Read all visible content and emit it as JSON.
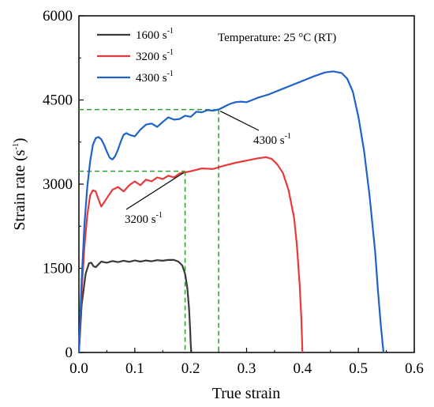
{
  "chart_data": {
    "type": "line",
    "xlabel": "True strain",
    "ylabel_main": "Strain rate (s",
    "ylabel_sup": "-1",
    "ylabel_tail": ")",
    "xlim": [
      0,
      0.6
    ],
    "ylim": [
      0,
      6000
    ],
    "xticks": [
      0.0,
      0.1,
      0.2,
      0.3,
      0.4,
      0.5,
      0.6
    ],
    "xtick_labels": [
      "0.0",
      "0.1",
      "0.2",
      "0.3",
      "0.4",
      "0.5",
      "0.6"
    ],
    "yticks": [
      0,
      1500,
      3000,
      4500,
      6000
    ],
    "ytick_labels": [
      "0",
      "1500",
      "3000",
      "4500",
      "6000"
    ],
    "grid": false,
    "legend_position": "top-left",
    "annotation": "Temperature:  25 °C (RT)",
    "series": [
      {
        "name": "1600 s",
        "name_sup": "-1",
        "color": "#3a3a3a",
        "x": [
          0,
          0.005,
          0.012,
          0.018,
          0.022,
          0.026,
          0.03,
          0.034,
          0.04,
          0.05,
          0.06,
          0.07,
          0.08,
          0.09,
          0.1,
          0.11,
          0.12,
          0.13,
          0.14,
          0.15,
          0.16,
          0.17,
          0.178,
          0.185,
          0.19,
          0.194,
          0.197,
          0.199,
          0.2,
          0.201
        ],
        "y": [
          0,
          850,
          1400,
          1590,
          1600,
          1540,
          1520,
          1560,
          1620,
          1600,
          1630,
          1610,
          1635,
          1615,
          1640,
          1620,
          1640,
          1625,
          1645,
          1635,
          1650,
          1650,
          1620,
          1550,
          1400,
          1150,
          800,
          400,
          150,
          0
        ]
      },
      {
        "name": "3200 s",
        "name_sup": "-1",
        "color": "#e8393a",
        "x": [
          0,
          0.005,
          0.01,
          0.015,
          0.02,
          0.025,
          0.03,
          0.035,
          0.04,
          0.05,
          0.06,
          0.07,
          0.08,
          0.09,
          0.1,
          0.11,
          0.12,
          0.13,
          0.14,
          0.15,
          0.16,
          0.17,
          0.18,
          0.19,
          0.2,
          0.22,
          0.24,
          0.26,
          0.28,
          0.3,
          0.32,
          0.335,
          0.345,
          0.355,
          0.365,
          0.375,
          0.385,
          0.39,
          0.395,
          0.398,
          0.4
        ],
        "y": [
          0,
          1100,
          1900,
          2450,
          2800,
          2890,
          2870,
          2730,
          2600,
          2750,
          2900,
          2950,
          2870,
          2980,
          3050,
          2980,
          3080,
          3050,
          3120,
          3090,
          3150,
          3120,
          3190,
          3210,
          3230,
          3280,
          3270,
          3330,
          3380,
          3420,
          3460,
          3480,
          3450,
          3350,
          3200,
          2900,
          2400,
          1900,
          1200,
          600,
          0
        ]
      },
      {
        "name": "4300 s",
        "name_sup": "-1",
        "color": "#1f62c8",
        "x": [
          0,
          0.005,
          0.01,
          0.015,
          0.02,
          0.025,
          0.03,
          0.035,
          0.04,
          0.045,
          0.05,
          0.055,
          0.06,
          0.065,
          0.07,
          0.075,
          0.08,
          0.085,
          0.09,
          0.1,
          0.11,
          0.12,
          0.13,
          0.14,
          0.15,
          0.16,
          0.17,
          0.18,
          0.19,
          0.2,
          0.21,
          0.22,
          0.23,
          0.24,
          0.25,
          0.26,
          0.27,
          0.28,
          0.29,
          0.3,
          0.31,
          0.32,
          0.33,
          0.34,
          0.36,
          0.38,
          0.4,
          0.42,
          0.44,
          0.455,
          0.47,
          0.48,
          0.49,
          0.5,
          0.51,
          0.52,
          0.53,
          0.535,
          0.54,
          0.545
        ],
        "y": [
          0,
          1300,
          2300,
          2950,
          3400,
          3700,
          3820,
          3840,
          3800,
          3700,
          3580,
          3470,
          3440,
          3500,
          3620,
          3760,
          3880,
          3910,
          3880,
          3850,
          3970,
          4060,
          4080,
          4020,
          4110,
          4190,
          4150,
          4160,
          4220,
          4200,
          4290,
          4280,
          4320,
          4310,
          4330,
          4380,
          4430,
          4460,
          4470,
          4460,
          4500,
          4540,
          4570,
          4600,
          4680,
          4760,
          4840,
          4920,
          4990,
          5010,
          4980,
          4880,
          4650,
          4200,
          3600,
          2800,
          1800,
          1100,
          500,
          0
        ]
      }
    ],
    "guides": [
      {
        "x": 0.19,
        "y": 3230,
        "color": "#2ea02e",
        "label": "3200 s",
        "label_sup": "-1"
      },
      {
        "x": 0.25,
        "y": 4330,
        "color": "#2ea02e",
        "label": "4300 s",
        "label_sup": "-1"
      }
    ]
  }
}
